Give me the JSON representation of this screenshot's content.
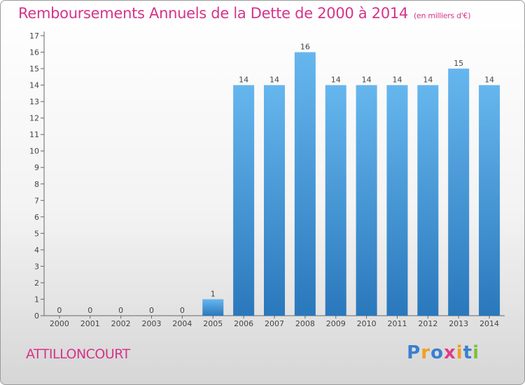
{
  "title": "Remboursements Annuels de la Dette de 2000 à 2014",
  "unit": "(en milliers d'€)",
  "commune": "ATTILLONCOURT",
  "brand": {
    "letters": [
      "P",
      "r",
      "o",
      "x",
      "i",
      "t",
      "i"
    ],
    "colors": [
      "#3a7fd0",
      "#f0a020",
      "#3a7fd0",
      "#e23a8a",
      "#f0a020",
      "#3a7fd0",
      "#7cc23a"
    ]
  },
  "colors": {
    "bar_top": "#66b6ee",
    "bar_bottom": "#2a78bc",
    "title": "#d6338a"
  },
  "chart_data": {
    "type": "bar",
    "categories": [
      "2000",
      "2001",
      "2002",
      "2003",
      "2004",
      "2005",
      "2006",
      "2007",
      "2008",
      "2009",
      "2010",
      "2011",
      "2012",
      "2013",
      "2014"
    ],
    "values": [
      0,
      0,
      0,
      0,
      0,
      1,
      14,
      14,
      16,
      14,
      14,
      14,
      14,
      15,
      14
    ],
    "ylim": [
      0,
      17
    ],
    "yticks": [
      0,
      1,
      2,
      3,
      4,
      5,
      6,
      7,
      8,
      9,
      10,
      11,
      12,
      13,
      14,
      15,
      16,
      17
    ],
    "grid": false
  }
}
